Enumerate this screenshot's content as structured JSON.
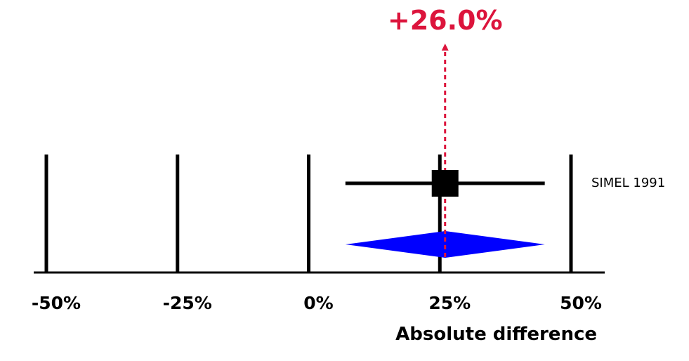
{
  "chart_data": {
    "type": "forest",
    "xlabel": "Absolute difference",
    "xlim": [
      -50,
      50
    ],
    "ticks": [
      -50,
      -25,
      0,
      25,
      50
    ],
    "tick_labels": [
      "-50%",
      "-25%",
      "0%",
      "25%",
      "50%"
    ],
    "studies": [
      {
        "name": "SIMEL 1991",
        "estimate": 26,
        "ci_low": 7,
        "ci_high": 45
      }
    ],
    "pooled": {
      "estimate": 26,
      "ci_low": 7,
      "ci_high": 45,
      "label": "+26.0%"
    },
    "colors": {
      "pooled_diamond": "#0000ff",
      "pooled_line": "#dc143c",
      "lines": "#000000"
    }
  }
}
